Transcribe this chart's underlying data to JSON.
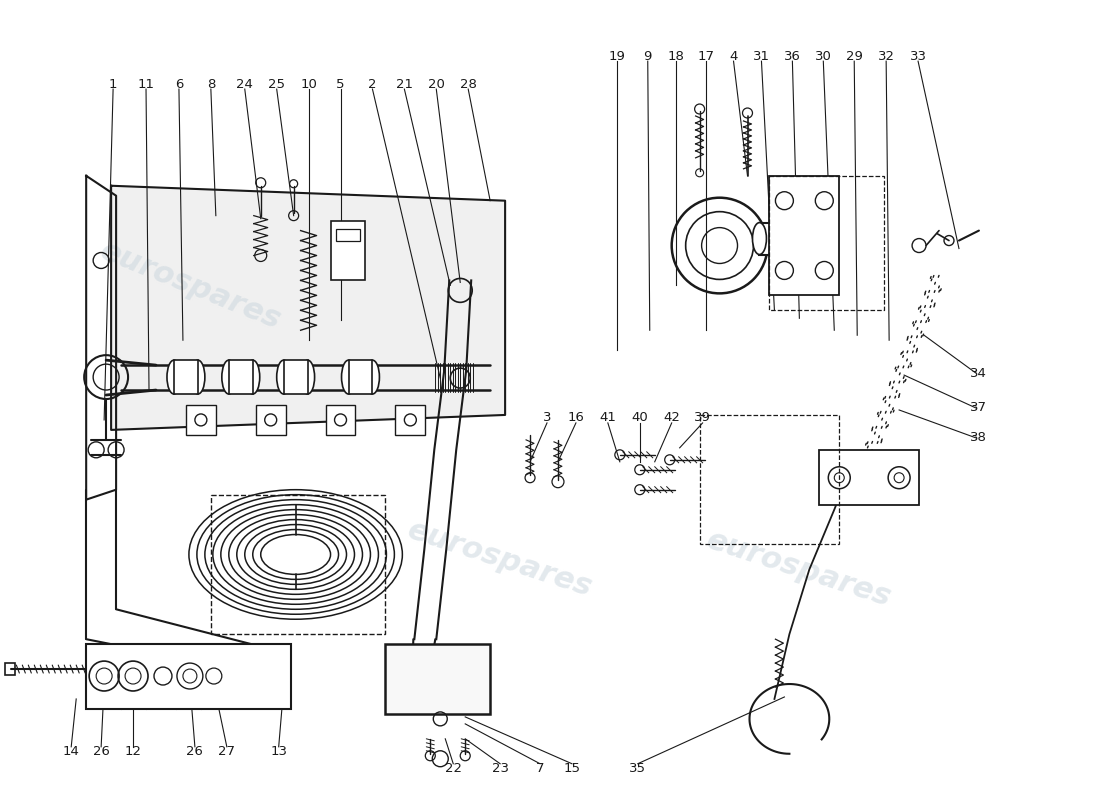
{
  "background_color": "#ffffff",
  "line_color": "#1a1a1a",
  "label_color": "#1a1a1a",
  "watermark_color": "#c8d4dc",
  "label_fontsize": 9.5,
  "fig_width": 11.0,
  "fig_height": 8.0,
  "dpi": 100,
  "top_left_labels": [
    [
      "1",
      112,
      83
    ],
    [
      "11",
      145,
      83
    ],
    [
      "6",
      178,
      83
    ],
    [
      "8",
      210,
      83
    ],
    [
      "24",
      244,
      83
    ],
    [
      "25",
      276,
      83
    ],
    [
      "10",
      308,
      83
    ],
    [
      "5",
      340,
      83
    ],
    [
      "2",
      372,
      83
    ],
    [
      "21",
      404,
      83
    ],
    [
      "20",
      436,
      83
    ],
    [
      "28",
      468,
      83
    ]
  ],
  "top_right_labels": [
    [
      "19",
      617,
      55
    ],
    [
      "9",
      648,
      55
    ],
    [
      "18",
      676,
      55
    ],
    [
      "17",
      706,
      55
    ],
    [
      "4",
      734,
      55
    ],
    [
      "31",
      762,
      55
    ],
    [
      "36",
      793,
      55
    ],
    [
      "30",
      824,
      55
    ],
    [
      "29",
      855,
      55
    ],
    [
      "32",
      887,
      55
    ],
    [
      "33",
      919,
      55
    ]
  ],
  "mid_labels": [
    [
      "3",
      547,
      418
    ],
    [
      "16",
      576,
      418
    ],
    [
      "41",
      608,
      418
    ],
    [
      "40",
      640,
      418
    ],
    [
      "42",
      672,
      418
    ],
    [
      "39",
      703,
      418
    ]
  ],
  "right_labels": [
    [
      "34",
      980,
      373
    ],
    [
      "37",
      980,
      408
    ],
    [
      "38",
      980,
      438
    ]
  ],
  "bottom_labels": [
    [
      "14",
      70,
      753
    ],
    [
      "26",
      100,
      753
    ],
    [
      "12",
      132,
      753
    ],
    [
      "26",
      194,
      753
    ],
    [
      "27",
      226,
      753
    ],
    [
      "13",
      278,
      753
    ],
    [
      "22",
      453,
      770
    ],
    [
      "23",
      500,
      770
    ],
    [
      "7",
      540,
      770
    ],
    [
      "15",
      572,
      770
    ],
    [
      "35",
      638,
      770
    ]
  ]
}
